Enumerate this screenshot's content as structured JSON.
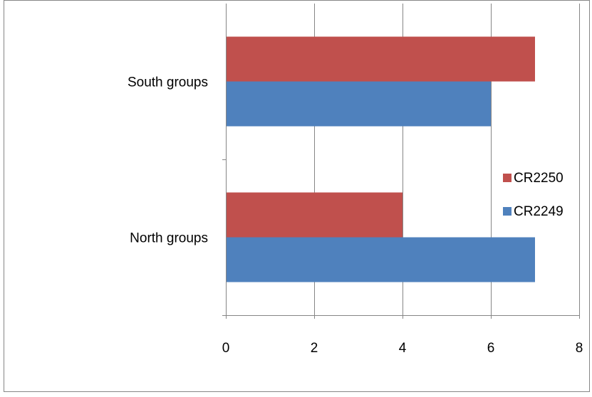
{
  "chart_data": {
    "type": "bar",
    "orientation": "horizontal",
    "title": "",
    "xlabel": "",
    "ylabel": "",
    "categories": [
      "North  groups",
      "South groups"
    ],
    "series": [
      {
        "name": "CR2249",
        "color": "#4f81bd",
        "values": [
          7,
          6
        ]
      },
      {
        "name": "CR2250",
        "color": "#c0504d",
        "values": [
          4,
          7
        ]
      }
    ],
    "xlim": [
      0,
      8
    ],
    "x_ticks": [
      0,
      2,
      4,
      6,
      8
    ],
    "x_tick_labels": [
      "0",
      "2",
      "4",
      "6",
      "8"
    ],
    "grid": "vertical major gridlines",
    "legend_position": "right"
  }
}
